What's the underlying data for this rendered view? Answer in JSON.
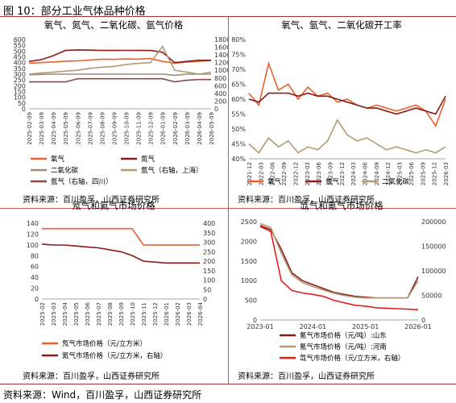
{
  "figure_title": "图 10：部分工业气体品种价格",
  "footer_source": "资料来源：Wind，百川盈孚，山西证券研究所",
  "colors": {
    "red": "#d62728",
    "darkred": "#8b1a1a",
    "orange": "#e8602c",
    "tan": "#b29a73",
    "brown": "#8b4a4a",
    "gray": "#9b8c78"
  },
  "chart_data": [
    {
      "type": "line",
      "title": "氧气、氮气、二氧化碳、氩气价格",
      "source": "资料来源：百川盈孚，山西证券研究所",
      "x": [
        "2025-02-09",
        "2025-03-09",
        "2025-04-09",
        "2025-05-09",
        "2025-06-09",
        "2025-07-09",
        "2025-08-09",
        "2025-09-09",
        "2025-10-09",
        "2025-11-09",
        "2025-12-09",
        "2026-01-09",
        "2026-02-09",
        "2026-03-09",
        "2026-04-09",
        "2026-05-09"
      ],
      "x_ticks": [
        "2025-02-09",
        "2025-03-09",
        "2025-04-09",
        "2025-05-09",
        "2025-06-09",
        "2025-07-09",
        "2025-08-09",
        "2025-09-09",
        "2025-10-09",
        "2025-11-09",
        "2025-12-09",
        "2026-01-09",
        "2026-02-09",
        "2026-03-09",
        "2026-04-09",
        "2026-05-09"
      ],
      "ylim": [
        0,
        600
      ],
      "y_ticks": [
        "0",
        "50",
        "100",
        "150",
        "200",
        "250",
        "300",
        "350",
        "400",
        "450",
        "500",
        "550",
        "600"
      ],
      "y2lim": [
        0,
        1800
      ],
      "y2_ticks": [
        "0",
        "200",
        "400",
        "600",
        "800",
        "1000",
        "1200",
        "1400",
        "1600",
        "1800"
      ],
      "series": [
        {
          "name": "氧气",
          "color": "#e8602c",
          "axis": "left",
          "values": [
            395,
            400,
            405,
            412,
            415,
            422,
            430,
            428,
            432,
            430,
            435,
            410,
            395,
            405,
            412,
            418
          ]
        },
        {
          "name": "氮气",
          "color": "#8b1a1a",
          "axis": "left",
          "values": [
            410,
            425,
            460,
            505,
            510,
            508,
            505,
            505,
            506,
            505,
            505,
            490,
            400,
            410,
            420,
            420
          ]
        },
        {
          "name": "二氧化碳",
          "color": "#9b8c78",
          "axis": "left",
          "values": [
            295,
            298,
            300,
            300,
            300,
            300,
            300,
            300,
            300,
            300,
            300,
            300,
            290,
            300,
            300,
            300
          ]
        },
        {
          "name": "氩气（右轴，上海）",
          "color": "#b29a73",
          "axis": "right",
          "values": [
            900,
            930,
            950,
            980,
            1000,
            1050,
            1080,
            1100,
            1150,
            1180,
            1200,
            1620,
            1000,
            950,
            900,
            950
          ]
        },
        {
          "name": "氩气（右轴，四川）",
          "color": "#8b4a4a",
          "axis": "right",
          "values": [
            700,
            700,
            700,
            700,
            780,
            780,
            780,
            780,
            780,
            780,
            780,
            780,
            700,
            740,
            760,
            760
          ]
        }
      ],
      "legend": [
        "氧气",
        "氮气",
        "二氧化碳",
        "氩气（右轴，上海）",
        "氩气（右轴，四川）"
      ]
    },
    {
      "type": "line",
      "title": "氧气、氩气、二氧化碳开工率",
      "source": "资料来源：百川盈孚，山西证券研究所",
      "x_ticks": [
        "2021-12",
        "2022-03",
        "2022-06",
        "2022-09",
        "2022-12",
        "2023-03",
        "2023-06",
        "2023-09",
        "2023-12",
        "2024-03",
        "2024-06",
        "2024-09",
        "2024-12",
        "2025-03",
        "2025-06",
        "2025-09",
        "2025-12",
        "2026-03"
      ],
      "ylim": [
        0.4,
        0.8
      ],
      "y_ticks": [
        "40%",
        "45%",
        "50%",
        "55%",
        "60%",
        "65%",
        "70%",
        "75%",
        "80%"
      ],
      "series": [
        {
          "name": "氧气",
          "color": "#e8602c",
          "values": [
            0.62,
            0.58,
            0.72,
            0.63,
            0.65,
            0.6,
            0.64,
            0.61,
            0.62,
            0.59,
            0.6,
            0.58,
            0.57,
            0.58,
            0.57,
            0.56,
            0.57,
            0.58,
            0.56,
            0.51,
            0.6
          ]
        },
        {
          "name": "氩气",
          "color": "#8b1a1a",
          "values": [
            0.6,
            0.59,
            0.62,
            0.62,
            0.62,
            0.61,
            0.62,
            0.61,
            0.61,
            0.6,
            0.59,
            0.58,
            0.57,
            0.57,
            0.56,
            0.55,
            0.56,
            0.57,
            0.56,
            0.55,
            0.61
          ]
        },
        {
          "name": "二氧化碳",
          "color": "#b29a73",
          "values": [
            0.45,
            0.42,
            0.47,
            0.44,
            0.46,
            0.42,
            0.44,
            0.43,
            0.46,
            0.53,
            0.48,
            0.46,
            0.47,
            0.45,
            0.43,
            0.44,
            0.43,
            0.42,
            0.43,
            0.42,
            0.44
          ]
        }
      ],
      "legend": [
        "氧气",
        "氩气",
        "二氧化碳"
      ]
    },
    {
      "type": "line",
      "title": "氖气和氦气市场价格",
      "source": "资料来源：百川盈孚，山西证券研究所",
      "x_ticks": [
        "2025-02",
        "2025-03",
        "2025-04",
        "2025-05",
        "2025-06",
        "2025-07",
        "2025-08",
        "2025-09",
        "2025-10",
        "2025-11",
        "2025-12",
        "2026-01",
        "2026-02",
        "2026-03",
        "2026-04"
      ],
      "ylim": [
        0,
        140
      ],
      "y_ticks": [
        "0",
        "20",
        "40",
        "60",
        "80",
        "100",
        "120",
        "140"
      ],
      "y2lim": [
        0,
        400
      ],
      "y2_ticks": [
        "0",
        "50",
        "100",
        "150",
        "200",
        "250",
        "300",
        "350",
        "400"
      ],
      "series": [
        {
          "name": "氖气市场价格（元/立方米）",
          "color": "#e8602c",
          "axis": "left",
          "values": [
            130,
            130,
            130,
            130,
            130,
            130,
            130,
            130,
            130,
            100,
            100,
            100,
            100,
            100,
            100
          ]
        },
        {
          "name": "氦气市场价格（元/立方米，右轴）",
          "color": "#8b1a1a",
          "axis": "right",
          "values": [
            290,
            285,
            285,
            280,
            275,
            270,
            260,
            250,
            230,
            200,
            195,
            190,
            190,
            190,
            190
          ]
        }
      ],
      "legend": [
        "氖气市场价格（元/立方米）",
        "氦气市场价格（元/立方米，右轴）"
      ]
    },
    {
      "type": "line",
      "title": "氙气和氪气市场价格",
      "source": "资料来源：百川盈孚，山西证券研究所",
      "x_ticks": [
        "2023-01",
        "2024-01",
        "2025-01",
        "2026-01"
      ],
      "ylim": [
        0,
        2500
      ],
      "y_ticks": [
        "0",
        "500",
        "1000",
        "1500",
        "2000",
        "2500"
      ],
      "y2lim": [
        0,
        200000
      ],
      "y2_ticks": [
        "0",
        "50000",
        "100000",
        "150000",
        "200000"
      ],
      "series": [
        {
          "name": "氪气市场价格（元/吨）:山东",
          "color": "#8b1a1a",
          "axis": "left",
          "values": [
            2400,
            2300,
            1800,
            1200,
            1000,
            900,
            800,
            700,
            650,
            600,
            580,
            560,
            560,
            560,
            560,
            1100
          ]
        },
        {
          "name": "氪气市场价格（元/吨）:河南",
          "color": "#b29a73",
          "axis": "left",
          "values": [
            2450,
            2350,
            1700,
            1150,
            950,
            850,
            760,
            680,
            620,
            580,
            560,
            560,
            560,
            560,
            560,
            1000
          ]
        },
        {
          "name": "氙气市场价格（元/立方米，右轴）",
          "color": "#e61e1e",
          "axis": "right",
          "values": [
            190000,
            180000,
            80000,
            60000,
            55000,
            52000,
            48000,
            40000,
            35000,
            30000,
            28000,
            25000,
            24000,
            23000,
            22000,
            21000
          ]
        }
      ],
      "legend": [
        "氪气市场价格（元/吨）:山东",
        "氪气市场价格（元/吨）:河南",
        "氙气市场价格（元/立方米，右轴）"
      ]
    }
  ]
}
